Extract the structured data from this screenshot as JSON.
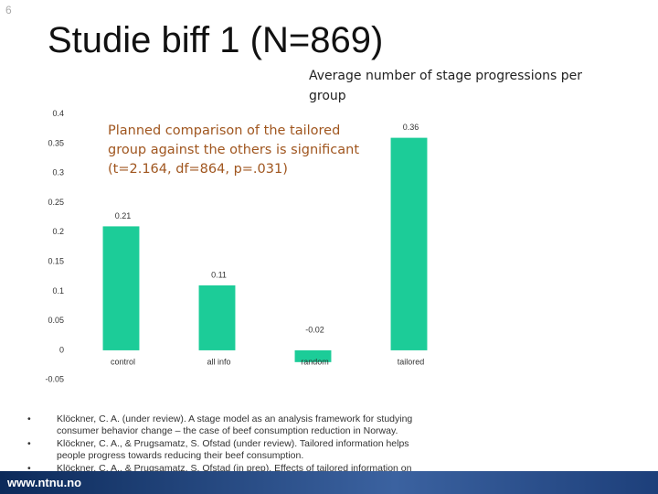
{
  "slide_number": "6",
  "title": "Studie biff 1 (N=869)",
  "chart_data": {
    "type": "bar",
    "title": "Average number of stage progressions per group",
    "annotation": "Planned comparison of the tailored group against the others is significant (t=2.164, df=864, p=.031)",
    "categories": [
      "control",
      "all info",
      "random",
      "tailored"
    ],
    "values": [
      0.21,
      0.11,
      -0.02,
      0.36
    ],
    "color": "#1ccc98",
    "ylim": [
      -0.05,
      0.4
    ],
    "yticks": [
      -0.05,
      0,
      0.05,
      0.1,
      0.15,
      0.2,
      0.25,
      0.3,
      0.35,
      0.4
    ],
    "grid": false
  },
  "references": [
    "Klöckner, C. A. (under review). A stage model as an analysis framework for studying consumer behavior change – the case of beef consumption reduction in Norway.",
    "Klöckner, C. A., & Prugsamatz, S. Ofstad (under review). Tailored information helps people progress towards reducing their beef consumption.",
    "Klöckner, C. A., & Prugsamatz, S. Ofstad (in prep). Effects of tailored information on reduction of beef consumption and its psychological determinants."
  ],
  "footer": "www.ntnu.no"
}
